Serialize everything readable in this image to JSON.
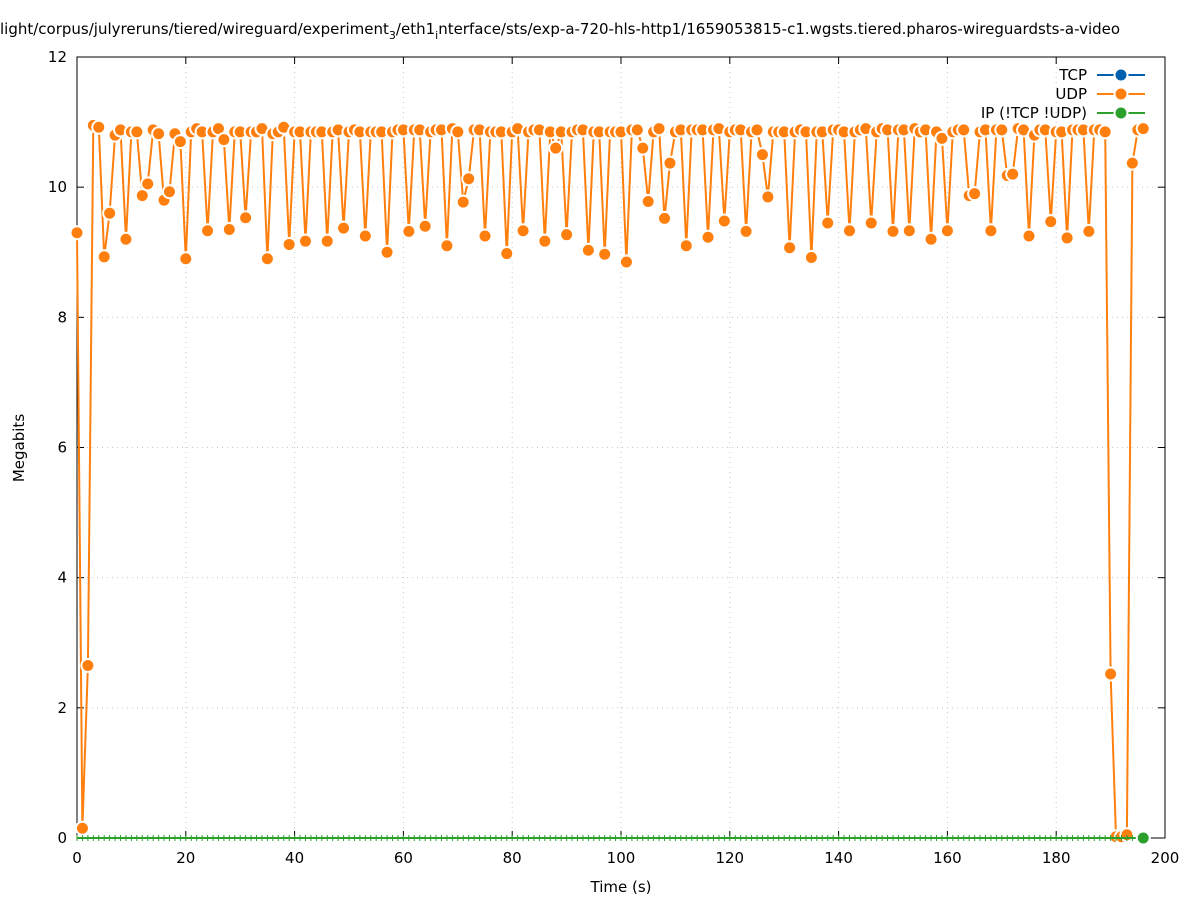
{
  "chart_data": {
    "type": "line",
    "title": "light/corpus/julyreruns/tiered/wireguard/experiment",
    "title_sub1": "3",
    "title_mid": "/eth1",
    "title_sub2": "i",
    "title_end": "nterface/sts/exp-a-720-hls-http1/1659053815-c1.wgsts.tiered.pharos-wireguardsts-a-video",
    "xlabel": "Time (s)",
    "ylabel": "Megabits",
    "xlim": [
      0,
      200
    ],
    "ylim": [
      0,
      12
    ],
    "xticks": [
      0,
      20,
      40,
      60,
      80,
      100,
      120,
      140,
      160,
      180,
      200
    ],
    "yticks": [
      0,
      2,
      4,
      6,
      8,
      10,
      12
    ],
    "grid": true,
    "legend_position": "top-right",
    "series": [
      {
        "name": "TCP",
        "color": "#0060ad",
        "x": [],
        "values": []
      },
      {
        "name": "UDP",
        "color": "#ff7f0e",
        "x": [
          0,
          1,
          2,
          3,
          4,
          5,
          6,
          7,
          8,
          9,
          10,
          11,
          12,
          13,
          14,
          15,
          16,
          17,
          18,
          19,
          20,
          21,
          22,
          23,
          24,
          25,
          26,
          27,
          28,
          29,
          30,
          31,
          32,
          33,
          34,
          35,
          36,
          37,
          38,
          39,
          40,
          41,
          42,
          43,
          44,
          45,
          46,
          47,
          48,
          49,
          50,
          51,
          52,
          53,
          54,
          55,
          56,
          57,
          58,
          59,
          60,
          61,
          62,
          63,
          64,
          65,
          66,
          67,
          68,
          69,
          70,
          71,
          72,
          73,
          74,
          75,
          76,
          77,
          78,
          79,
          80,
          81,
          82,
          83,
          84,
          85,
          86,
          87,
          88,
          89,
          90,
          91,
          92,
          93,
          94,
          95,
          96,
          97,
          98,
          99,
          100,
          101,
          102,
          103,
          104,
          105,
          106,
          107,
          108,
          109,
          110,
          111,
          112,
          113,
          114,
          115,
          116,
          117,
          118,
          119,
          120,
          121,
          122,
          123,
          124,
          125,
          126,
          127,
          128,
          129,
          130,
          131,
          132,
          133,
          134,
          135,
          136,
          137,
          138,
          139,
          140,
          141,
          142,
          143,
          144,
          145,
          146,
          147,
          148,
          149,
          150,
          151,
          152,
          153,
          154,
          155,
          156,
          157,
          158,
          159,
          160,
          161,
          162,
          163,
          164,
          165,
          166,
          167,
          168,
          169,
          170,
          171,
          172,
          173,
          174,
          175,
          176,
          177,
          178,
          179,
          180,
          181,
          182,
          183,
          184,
          185,
          186,
          187,
          188,
          189,
          190,
          191,
          192,
          193,
          194,
          195,
          196
        ],
        "values": [
          9.3,
          0.15,
          2.65,
          10.95,
          10.92,
          8.93,
          9.6,
          10.8,
          10.88,
          9.2,
          10.85,
          10.85,
          9.87,
          10.05,
          10.88,
          10.82,
          9.8,
          9.93,
          10.82,
          10.7,
          8.9,
          10.85,
          10.9,
          10.85,
          9.33,
          10.85,
          10.9,
          10.73,
          9.35,
          10.85,
          10.85,
          9.53,
          10.85,
          10.85,
          10.9,
          8.9,
          10.82,
          10.85,
          10.92,
          9.12,
          10.85,
          10.85,
          9.17,
          10.85,
          10.85,
          10.85,
          9.17,
          10.85,
          10.88,
          9.37,
          10.85,
          10.88,
          10.85,
          9.25,
          10.85,
          10.85,
          10.85,
          9.0,
          10.85,
          10.88,
          10.88,
          9.32,
          10.88,
          10.88,
          9.4,
          10.85,
          10.88,
          10.88,
          9.1,
          10.9,
          10.85,
          9.77,
          10.13,
          10.88,
          10.88,
          9.25,
          10.85,
          10.85,
          10.85,
          8.98,
          10.85,
          10.9,
          9.33,
          10.85,
          10.88,
          10.88,
          9.17,
          10.85,
          10.6,
          10.85,
          9.27,
          10.85,
          10.88,
          10.88,
          9.03,
          10.85,
          10.85,
          8.97,
          10.85,
          10.85,
          10.85,
          8.85,
          10.88,
          10.88,
          10.6,
          9.78,
          10.85,
          10.9,
          9.52,
          10.37,
          10.85,
          10.88,
          9.1,
          10.88,
          10.88,
          10.88,
          9.23,
          10.88,
          10.9,
          9.48,
          10.85,
          10.88,
          10.88,
          9.32,
          10.85,
          10.88,
          10.5,
          9.85,
          10.85,
          10.85,
          10.85,
          9.07,
          10.85,
          10.88,
          10.85,
          8.92,
          10.85,
          10.85,
          9.45,
          10.88,
          10.88,
          10.85,
          9.33,
          10.85,
          10.88,
          10.9,
          9.45,
          10.85,
          10.9,
          10.88,
          9.32,
          10.88,
          10.88,
          9.33,
          10.9,
          10.85,
          10.88,
          9.2,
          10.85,
          10.75,
          9.33,
          10.85,
          10.88,
          10.88,
          9.87,
          9.9,
          10.85,
          10.88,
          9.33,
          10.88,
          10.88,
          10.18,
          10.2,
          10.9,
          10.88,
          9.25,
          10.8,
          10.88,
          10.88,
          9.47,
          10.85,
          10.85,
          9.22,
          10.88,
          10.88,
          10.88,
          9.32,
          10.88,
          10.88,
          10.85,
          2.52,
          0.02,
          0.02,
          0.05,
          10.37,
          10.88,
          10.9
        ]
      },
      {
        "name": "IP (!TCP  !UDP)",
        "color": "#2ca02c",
        "x": [
          0,
          196
        ],
        "values": [
          0,
          0
        ]
      }
    ]
  }
}
